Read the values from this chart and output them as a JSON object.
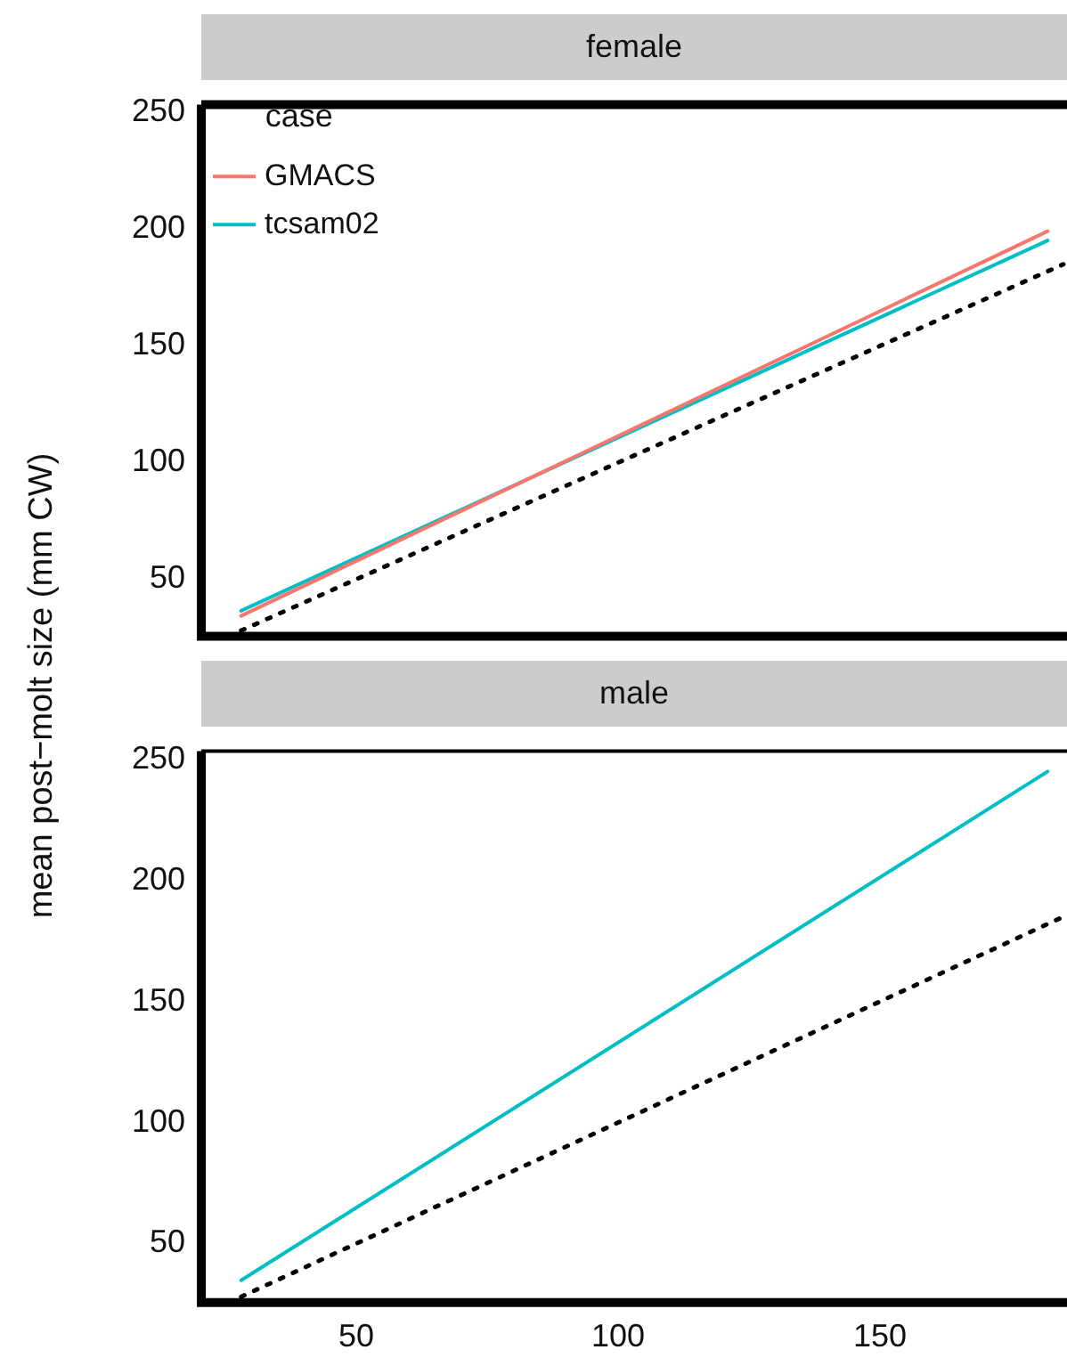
{
  "chart_data": [
    {
      "type": "line",
      "title": "female",
      "ylabel": "mean post−molt size (mm CW)",
      "legend_title": "case",
      "legend": "top left",
      "tick_labels": "y",
      "xlim": [
        20.4,
        185.7
      ],
      "xticks": [
        50,
        100,
        150
      ],
      "ylim": [
        25.6,
        253.4
      ],
      "yticks": [
        50,
        100,
        150,
        200,
        250
      ],
      "series": [
        {
          "x": [
            28,
            185
          ],
          "values": [
            28,
            185
          ],
          "color": "#000000",
          "line_style": "dotted"
        },
        {
          "name": "GMACS",
          "x": [
            28,
            182
          ],
          "values": [
            34.3,
            199.2
          ],
          "color": "#f8766d"
        },
        {
          "name": "tcsam02",
          "x": [
            28,
            182
          ],
          "values": [
            36.5,
            195.2
          ],
          "color": "#00bfc4"
        }
      ]
    },
    {
      "type": "line",
      "title": "male",
      "xlim": [
        20.4,
        185.7
      ],
      "xticks": [
        50,
        100,
        150
      ],
      "ylim": [
        25.6,
        253.4
      ],
      "yticks": [
        50,
        100,
        150,
        200,
        250
      ],
      "series": [
        {
          "x": [
            28,
            185
          ],
          "values": [
            28,
            185
          ],
          "color": "#000000",
          "line_style": "dotted"
        },
        {
          "x": [
            28,
            182
          ],
          "values": [
            34.8,
            245
          ],
          "color": "#00bfc4"
        }
      ]
    }
  ]
}
